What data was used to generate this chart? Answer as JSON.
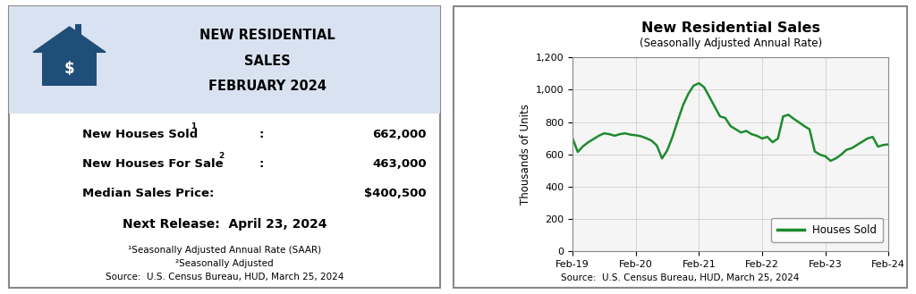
{
  "header_bg": "#d9e2f0",
  "panel_border": "#888888",
  "title_line1": "NEW RESIDENTIAL",
  "title_line2": "SALES",
  "title_line3": "FEBRUARY 2024",
  "stat1_label": "New Houses Sold",
  "stat1_sup": "1",
  "stat1_value": "662,000",
  "stat2_label": "New Houses For Sale",
  "stat2_sup": "2",
  "stat2_value": "463,000",
  "stat3_label": "Median Sales Price:",
  "stat3_value": "$400,500",
  "next_release": "Next Release:  April 23, 2024",
  "footnote1": "¹Seasonally Adjusted Annual Rate (SAAR)",
  "footnote2": "²Seasonally Adjusted",
  "source_left": "Source:  U.S. Census Bureau, HUD, March 25, 2024",
  "chart_title": "New Residential Sales",
  "chart_subtitle": "(Seasonally Adjusted Annual Rate)",
  "chart_ylabel": "Thousands of Units",
  "chart_source": "Source:  U.S. Census Bureau, HUD, March 25, 2024",
  "legend_label": "Houses Sold",
  "line_color": "#1e8a2e",
  "ylim": [
    0,
    1200
  ],
  "yticks": [
    0,
    200,
    400,
    600,
    800,
    1000,
    1200
  ],
  "xtick_labels": [
    "Feb-19",
    "Feb-20",
    "Feb-21",
    "Feb-22",
    "Feb-23",
    "Feb-24"
  ],
  "xtick_positions": [
    0,
    12,
    24,
    36,
    48,
    60
  ],
  "series_y": [
    700,
    615,
    650,
    675,
    695,
    715,
    730,
    725,
    715,
    725,
    730,
    722,
    718,
    712,
    700,
    685,
    655,
    575,
    625,
    710,
    810,
    905,
    975,
    1025,
    1040,
    1015,
    955,
    895,
    835,
    825,
    775,
    755,
    735,
    745,
    725,
    715,
    698,
    708,
    675,
    698,
    835,
    845,
    820,
    798,
    775,
    755,
    618,
    598,
    588,
    560,
    575,
    598,
    628,
    638,
    658,
    678,
    698,
    708,
    648,
    658,
    662
  ]
}
